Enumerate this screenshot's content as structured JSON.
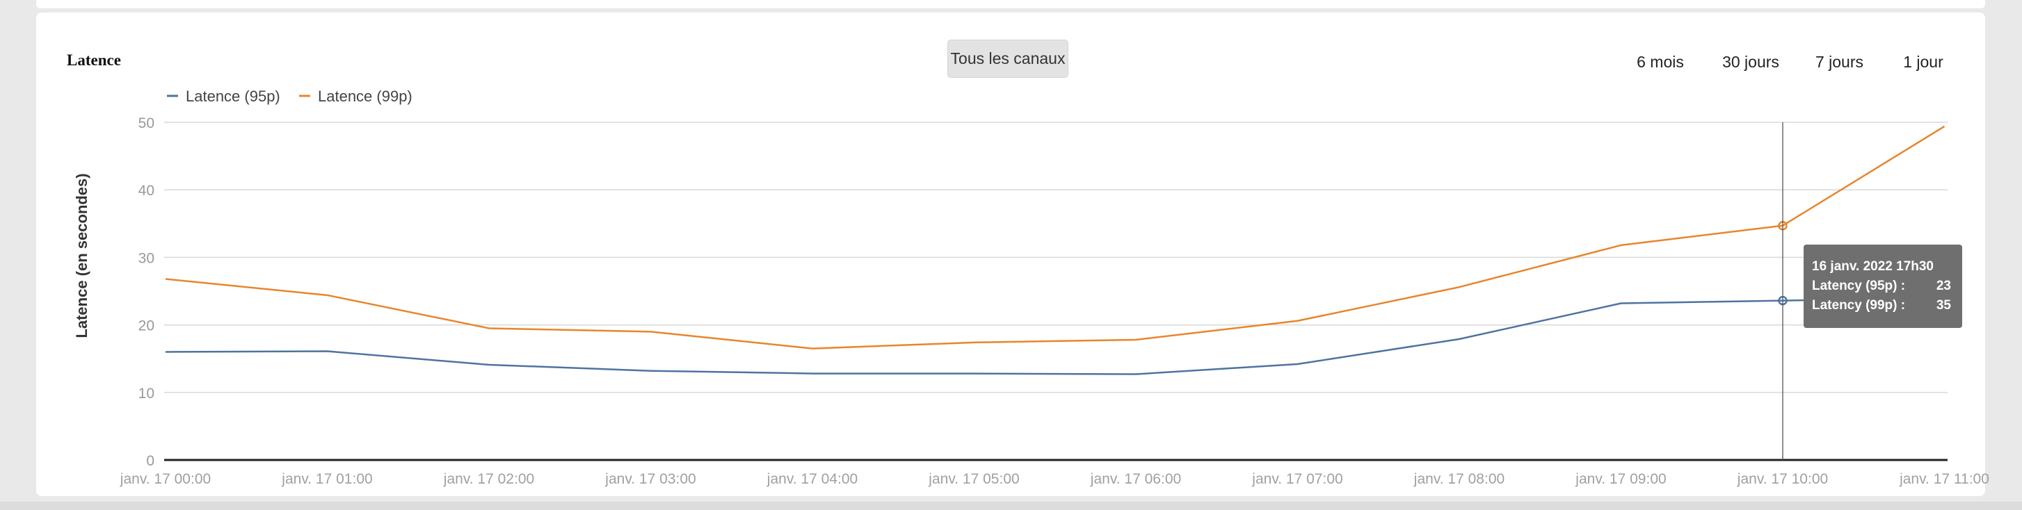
{
  "card": {
    "title": "Latence",
    "channel_button": "Tous les canaux",
    "ranges": [
      {
        "label": "6 mois",
        "active": false
      },
      {
        "label": "30 jours",
        "active": false
      },
      {
        "label": "7 jours",
        "active": false
      },
      {
        "label": "1 jour",
        "active": true
      }
    ]
  },
  "tooltip": {
    "title": "16 janv. 2022 17h30",
    "rows": [
      {
        "label": "Latency (95p) :",
        "value": "23"
      },
      {
        "label": "Latency (99p) :",
        "value": "35"
      }
    ]
  },
  "chart_data": {
    "type": "line",
    "title": "Latence",
    "ylabel": "Latence (en secondes)",
    "xlabel": "",
    "ylim": [
      0,
      50
    ],
    "yticks": [
      0,
      10,
      20,
      30,
      40,
      50
    ],
    "grid": true,
    "legend": "top-left",
    "categories": [
      "janv. 17 00:00",
      "janv. 17 01:00",
      "janv. 17 02:00",
      "janv. 17 03:00",
      "janv. 17 04:00",
      "janv. 17 05:00",
      "janv. 17 06:00",
      "janv. 17 07:00",
      "janv. 17 08:00",
      "janv. 17 09:00",
      "janv. 17 10:00",
      "janv. 17 11:00"
    ],
    "series": [
      {
        "name": "Latence (95p)",
        "color": "#4e73a0",
        "values": [
          16.0,
          16.1,
          14.1,
          13.2,
          12.8,
          12.8,
          12.7,
          14.2,
          17.9,
          23.2,
          23.6,
          24.0
        ]
      },
      {
        "name": "Latence (99p)",
        "color": "#e8852c",
        "values": [
          26.8,
          24.4,
          19.5,
          19.0,
          16.5,
          17.4,
          17.8,
          20.6,
          25.6,
          31.8,
          34.7,
          49.4
        ]
      }
    ],
    "highlight_index": 10
  }
}
